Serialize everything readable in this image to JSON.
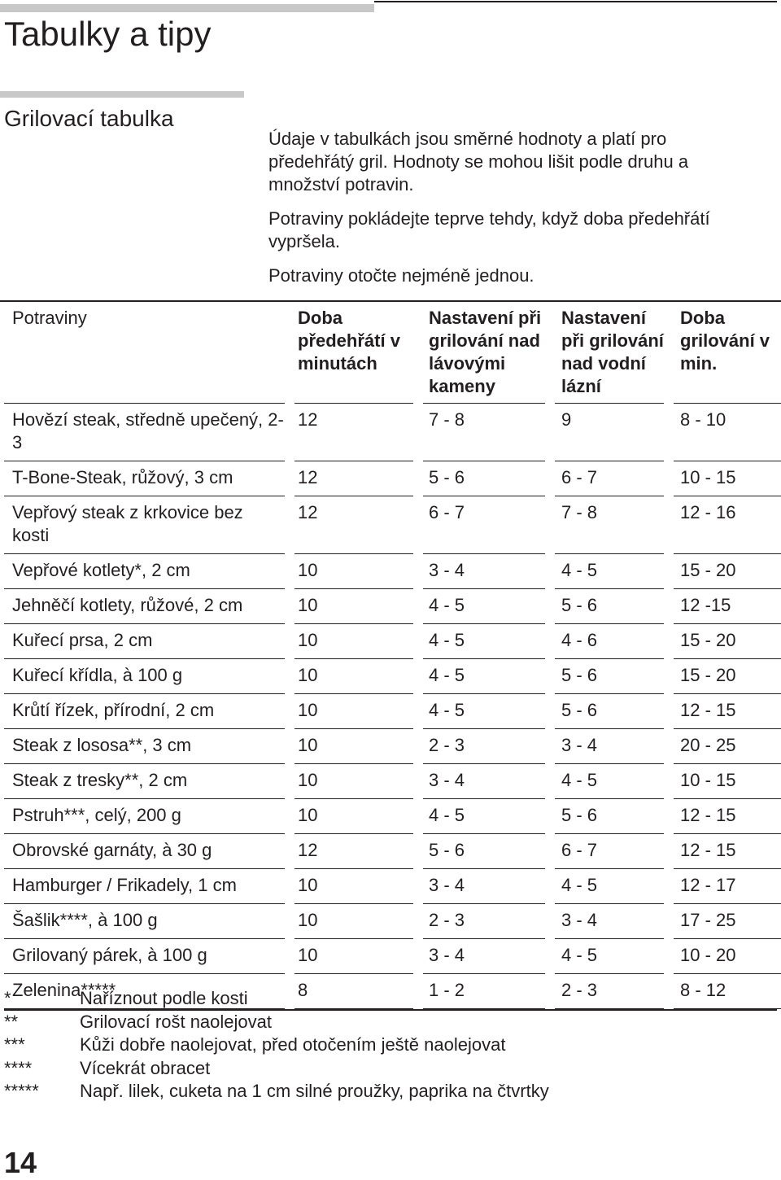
{
  "title": "Tabulky a tipy",
  "section_title": "Grilovací tabulka",
  "intro": [
    "Údaje v tabulkách jsou směrné hodnoty a platí pro předehřátý gril. Hodnoty se mohou lišit podle druhu a množství potravin.",
    "Potraviny pokládejte teprve tehdy, když doba předehřátí vypršela.",
    "Potraviny otočte nejméně jednou."
  ],
  "table": {
    "columns": [
      "Potraviny",
      "Doba předehřátí v minutách",
      "Nastavení při grilování nad lávovými kameny",
      "Nastavení při grilování nad vodní lázní",
      "Doba grilování v min."
    ],
    "rows": [
      [
        "Hovězí steak, středně upečený, 2-3",
        "12",
        "7 - 8",
        "9",
        "8 - 10"
      ],
      [
        "T-Bone-Steak, růžový, 3 cm",
        "12",
        "5 - 6",
        "6 - 7",
        "10 - 15"
      ],
      [
        "Vepřový steak z krkovice bez kosti",
        "12",
        "6 - 7",
        "7 - 8",
        "12 - 16"
      ],
      [
        "Vepřové kotlety*, 2 cm",
        "10",
        "3 - 4",
        "4 - 5",
        "15 - 20"
      ],
      [
        "Jehněčí kotlety, růžové, 2 cm",
        "10",
        "4 - 5",
        "5 - 6",
        "12 -15"
      ],
      [
        "Kuřecí prsa, 2 cm",
        "10",
        "4 - 5",
        "4 - 6",
        "15 - 20"
      ],
      [
        "Kuřecí křídla, à 100 g",
        "10",
        "4 - 5",
        "5 - 6",
        "15 - 20"
      ],
      [
        "Krůtí řízek, přírodní, 2 cm",
        "10",
        "4 - 5",
        "5 - 6",
        "12 - 15"
      ],
      [
        "Steak z lososa**, 3 cm",
        "10",
        "2 - 3",
        "3 - 4",
        "20 - 25"
      ],
      [
        "Steak z tresky**, 2 cm",
        "10",
        "3 - 4",
        "4 - 5",
        "10 - 15"
      ],
      [
        "Pstruh***, celý, 200 g",
        "10",
        "4 - 5",
        "5 - 6",
        "12 - 15"
      ],
      [
        "Obrovské garnáty, à 30 g",
        "12",
        "5 - 6",
        "6 - 7",
        "12 - 15"
      ],
      [
        "Hamburger / Frikadely, 1 cm",
        "10",
        "3 - 4",
        "4 - 5",
        "12 - 17"
      ],
      [
        "Šašlik****, à 100 g",
        "10",
        "2 - 3",
        "3 - 4",
        "17 - 25"
      ],
      [
        "Grilovaný párek, à 100 g",
        "10",
        "3 - 4",
        "4 - 5",
        "10 - 20"
      ],
      [
        "Zelenina*****",
        "8",
        "1 - 2",
        "2 - 3",
        "8 - 12"
      ]
    ]
  },
  "footnotes": [
    {
      "mark": "*",
      "text": "Naříznout podle kosti"
    },
    {
      "mark": "**",
      "text": "Grilovací rošt naolejovat"
    },
    {
      "mark": "***",
      "text": "Kůži dobře naolejovat, před otočením ještě naolejovat"
    },
    {
      "mark": "****",
      "text": "Vícekrát obracet"
    },
    {
      "mark": "*****",
      "text": "Např. lilek, cuketa na 1 cm silné proužky, paprika na čtvrtky"
    }
  ],
  "page_number": "14"
}
